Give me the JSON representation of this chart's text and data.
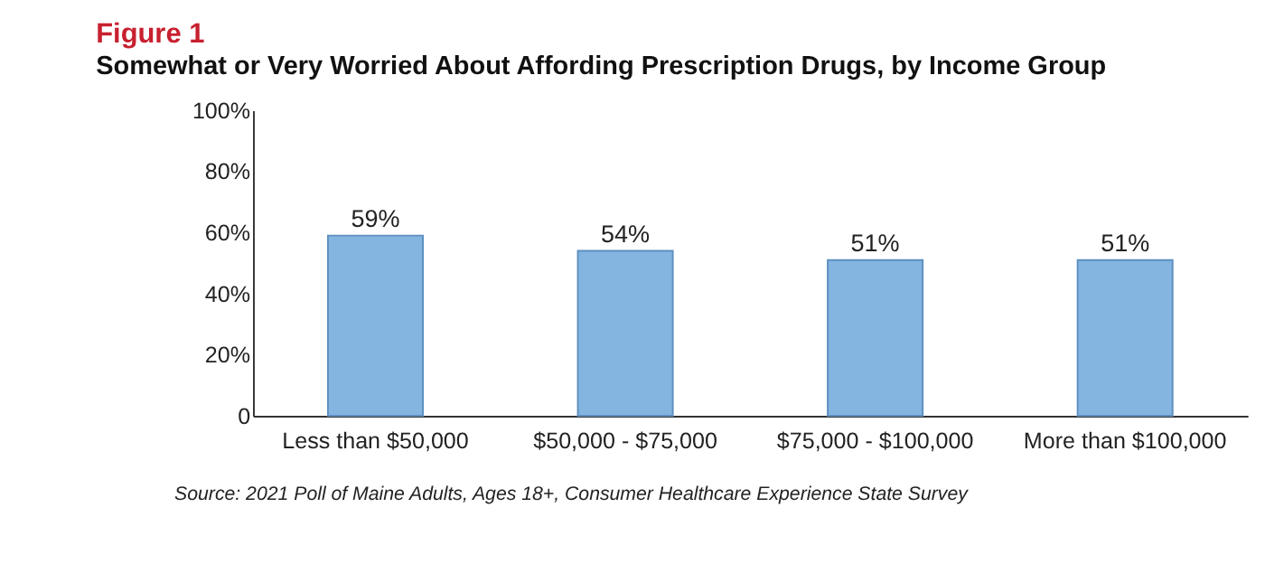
{
  "chart_data": {
    "type": "bar",
    "title": "Figure 1",
    "subtitle": "Somewhat or Very Worried About Affording Prescription Drugs, by Income Group",
    "categories": [
      "Less than $50,000",
      "$50,000 - $75,000",
      "$75,000 - $100,000",
      "More than $100,000"
    ],
    "values": [
      59,
      54,
      51,
      51
    ],
    "color": "#84b4e0",
    "value_labels": [
      "59%",
      "54%",
      "51%",
      "51%"
    ],
    "ylim": [
      0,
      100
    ],
    "yticks": [
      {
        "value": 0,
        "label": "0"
      },
      {
        "value": 20,
        "label": "20%"
      },
      {
        "value": 40,
        "label": "40%"
      },
      {
        "value": 60,
        "label": "60%"
      },
      {
        "value": 80,
        "label": "80%"
      },
      {
        "value": 100,
        "label": "100%"
      }
    ],
    "grid": false,
    "annotations": [
      "Source: 2021 Poll of Maine Adults, Ages 18+, Consumer Healthcare Experience State Survey"
    ]
  }
}
